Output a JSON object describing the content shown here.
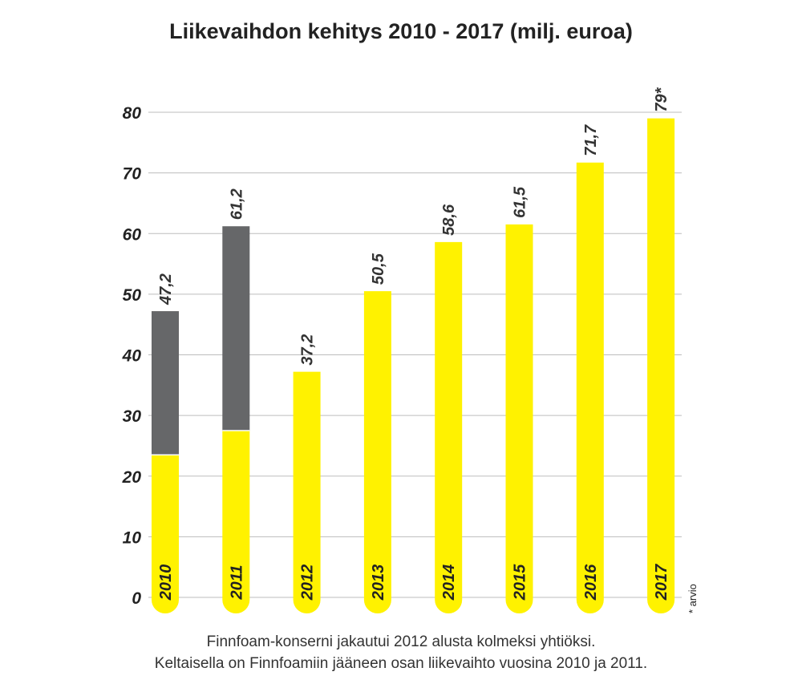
{
  "chart_data": {
    "type": "bar",
    "title": "Liikevaihdon kehitys 2010 - 2017 (milj. euroa)",
    "categories": [
      "2010",
      "2011",
      "2012",
      "2013",
      "2014",
      "2015",
      "2016",
      "2017"
    ],
    "series": [
      {
        "values": [
          23.5,
          27.5,
          37.2,
          50.5,
          58.6,
          61.5,
          71.7,
          79
        ]
      },
      {
        "values": [
          23.7,
          33.7,
          0,
          0,
          0,
          0,
          0,
          0
        ]
      }
    ],
    "value_labels": [
      "47,2",
      "61,2",
      "37,2",
      "50,5",
      "58,6",
      "61,5",
      "71,7",
      "79*"
    ],
    "y_ticks": [
      "0",
      "10",
      "20",
      "30",
      "40",
      "50",
      "60",
      "70",
      "80"
    ],
    "ylim": [
      0,
      80
    ],
    "grid": true,
    "footnote": "* arvio",
    "captions": [
      "Finnfoam-konserni jakautui 2012 alusta kolmeksi yhtiöksi.",
      "Keltaisella on Finnfoamiin jääneen osan liikevaihto vuosina 2010 ja 2011."
    ],
    "colors": {
      "yellow": "#FFF200",
      "gray": "#666769",
      "grid": "#BDBDBD",
      "text": "#333333"
    }
  }
}
